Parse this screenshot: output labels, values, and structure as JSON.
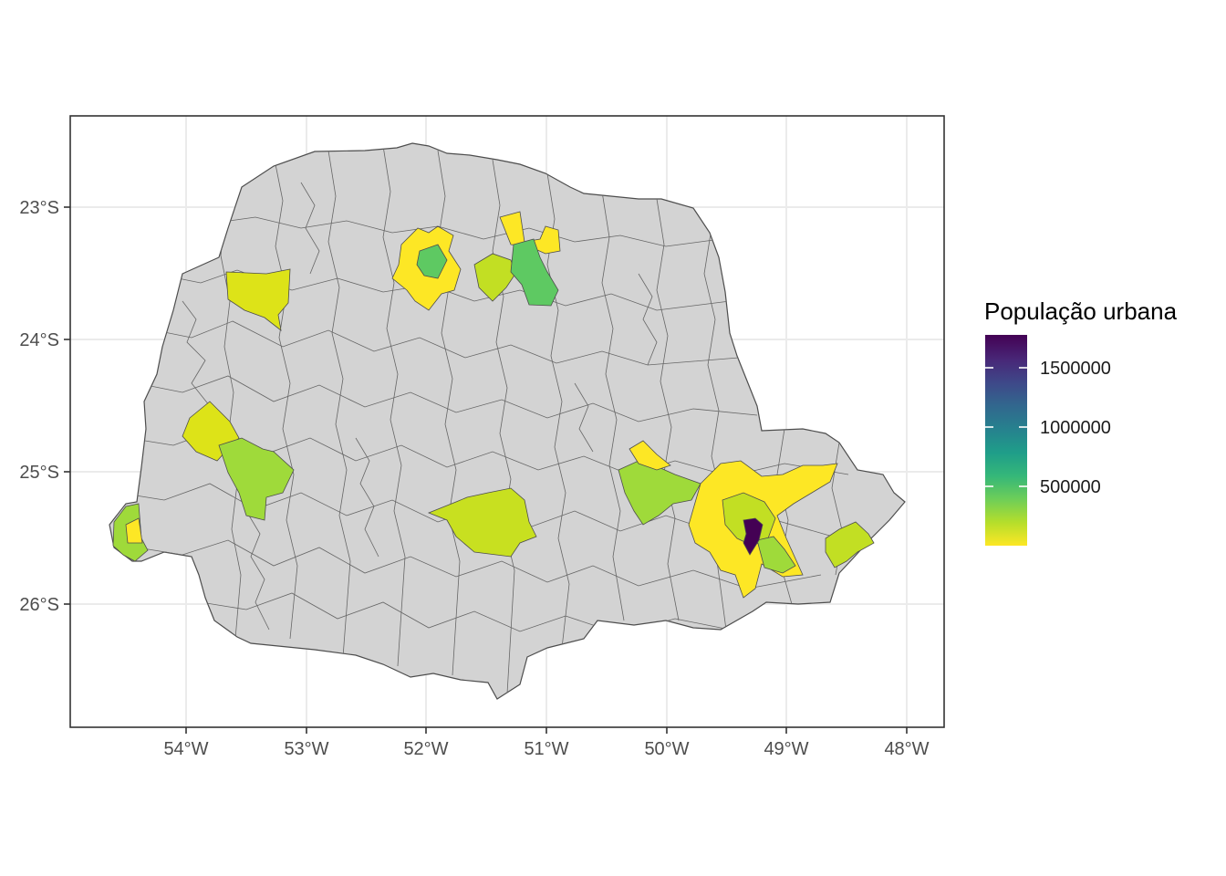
{
  "map": {
    "region": "Paraná",
    "x_ticks": [
      "54°W",
      "53°W",
      "52°W",
      "51°W",
      "50°W",
      "49°W",
      "48°W"
    ],
    "y_ticks": [
      "23°S",
      "24°S",
      "25°S",
      "26°S"
    ],
    "grid": true,
    "base_fill": "#d3d3d3",
    "border_color": "#4d4d4d",
    "highlighted_municipalities": [
      {
        "area": "north-center",
        "fill": "#5ec962"
      },
      {
        "area": "north-center-ring",
        "fill": "#fde725"
      },
      {
        "area": "north-east-large",
        "fill": "#5ec962"
      },
      {
        "area": "north-east-small",
        "fill": "#fde725"
      },
      {
        "area": "north-mid",
        "fill": "#c2df23"
      },
      {
        "area": "north-west",
        "fill": "#dde318"
      },
      {
        "area": "west",
        "fill": "#dde318"
      },
      {
        "area": "west-large",
        "fill": "#9fda3a"
      },
      {
        "area": "far-southwest",
        "fill": "#9fda3a"
      },
      {
        "area": "center-south",
        "fill": "#c8e020"
      },
      {
        "area": "east",
        "fill": "#9fda3a"
      },
      {
        "area": "metro-ring",
        "fill": "#fde725"
      },
      {
        "area": "capital",
        "fill": "#440154"
      },
      {
        "area": "coast",
        "fill": "#c2df23"
      }
    ]
  },
  "legend": {
    "title": "População urbana",
    "labels": [
      "1500000",
      "1000000",
      "500000"
    ],
    "values": [
      1500000,
      1000000,
      500000
    ],
    "min": 0,
    "max": 1750000,
    "colors": [
      "#fde725",
      "#b5de2b",
      "#6ece58",
      "#35b779",
      "#1f9e89",
      "#26828e",
      "#31688e",
      "#3e4989",
      "#482878",
      "#440154"
    ]
  }
}
